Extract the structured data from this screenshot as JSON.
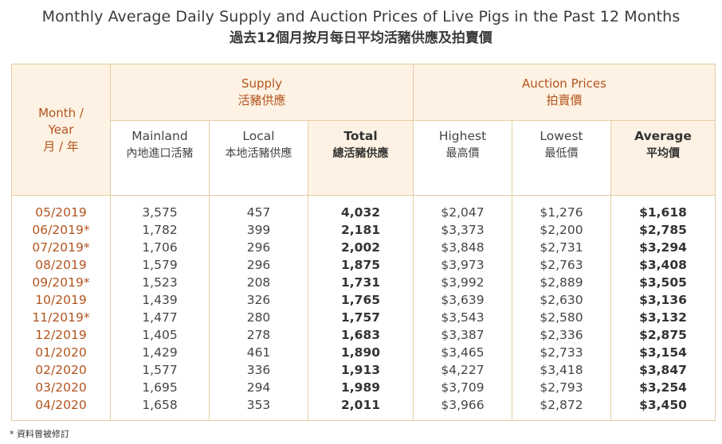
{
  "title": "Monthly Average Daily Supply and Auction Prices of Live Pigs in the Past 12 Months",
  "subtitle": "過去12個月按月每日平均活豬供應及拍賣價",
  "header": {
    "month_en": "Month /",
    "month_en2": "Year",
    "month_zh": "月 / 年",
    "supply_en": "Supply",
    "supply_zh": "活豬供應",
    "auction_en": "Auction Prices",
    "auction_zh": "拍賣價",
    "mainland_en": "Mainland",
    "mainland_zh": "內地進口活豬",
    "local_en": "Local",
    "local_zh": "本地活豬供應",
    "total_en": "Total",
    "total_zh": "總活豬供應",
    "highest_en": "Highest",
    "highest_zh": "最高價",
    "lowest_en": "Lowest",
    "lowest_zh": "最低價",
    "average_en": "Average",
    "average_zh": "平均價"
  },
  "rows": [
    {
      "month": "05/2019",
      "mainland": "3,575",
      "local": "457",
      "total": "4,032",
      "highest": "$2,047",
      "lowest": "$1,276",
      "average": "$1,618"
    },
    {
      "month": "06/2019*",
      "mainland": "1,782",
      "local": "399",
      "total": "2,181",
      "highest": "$3,373",
      "lowest": "$2,200",
      "average": "$2,785"
    },
    {
      "month": "07/2019*",
      "mainland": "1,706",
      "local": "296",
      "total": "2,002",
      "highest": "$3,848",
      "lowest": "$2,731",
      "average": "$3,294"
    },
    {
      "month": "08/2019",
      "mainland": "1,579",
      "local": "296",
      "total": "1,875",
      "highest": "$3,973",
      "lowest": "$2,763",
      "average": "$3,408"
    },
    {
      "month": "09/2019*",
      "mainland": "1,523",
      "local": "208",
      "total": "1,731",
      "highest": "$3,992",
      "lowest": "$2,889",
      "average": "$3,505"
    },
    {
      "month": "10/2019",
      "mainland": "1,439",
      "local": "326",
      "total": "1,765",
      "highest": "$3,639",
      "lowest": "$2,630",
      "average": "$3,136"
    },
    {
      "month": "11/2019*",
      "mainland": "1,477",
      "local": "280",
      "total": "1,757",
      "highest": "$3,543",
      "lowest": "$2,580",
      "average": "$3,132"
    },
    {
      "month": "12/2019",
      "mainland": "1,405",
      "local": "278",
      "total": "1,683",
      "highest": "$3,387",
      "lowest": "$2,336",
      "average": "$2,875"
    },
    {
      "month": "01/2020",
      "mainland": "1,429",
      "local": "461",
      "total": "1,890",
      "highest": "$3,465",
      "lowest": "$2,733",
      "average": "$3,154"
    },
    {
      "month": "02/2020",
      "mainland": "1,577",
      "local": "336",
      "total": "1,913",
      "highest": "$4,227",
      "lowest": "$3,418",
      "average": "$3,847"
    },
    {
      "month": "03/2020",
      "mainland": "1,695",
      "local": "294",
      "total": "1,989",
      "highest": "$3,709",
      "lowest": "$2,793",
      "average": "$3,254"
    },
    {
      "month": "04/2020",
      "mainland": "1,658",
      "local": "353",
      "total": "2,011",
      "highest": "$3,966",
      "lowest": "$2,872",
      "average": "$3,450"
    }
  ],
  "footnote": "* 資料曾被修訂",
  "colors": {
    "accent": "#b3541e",
    "header_bg": "#fdf2e3",
    "border": "#e6cda4"
  }
}
